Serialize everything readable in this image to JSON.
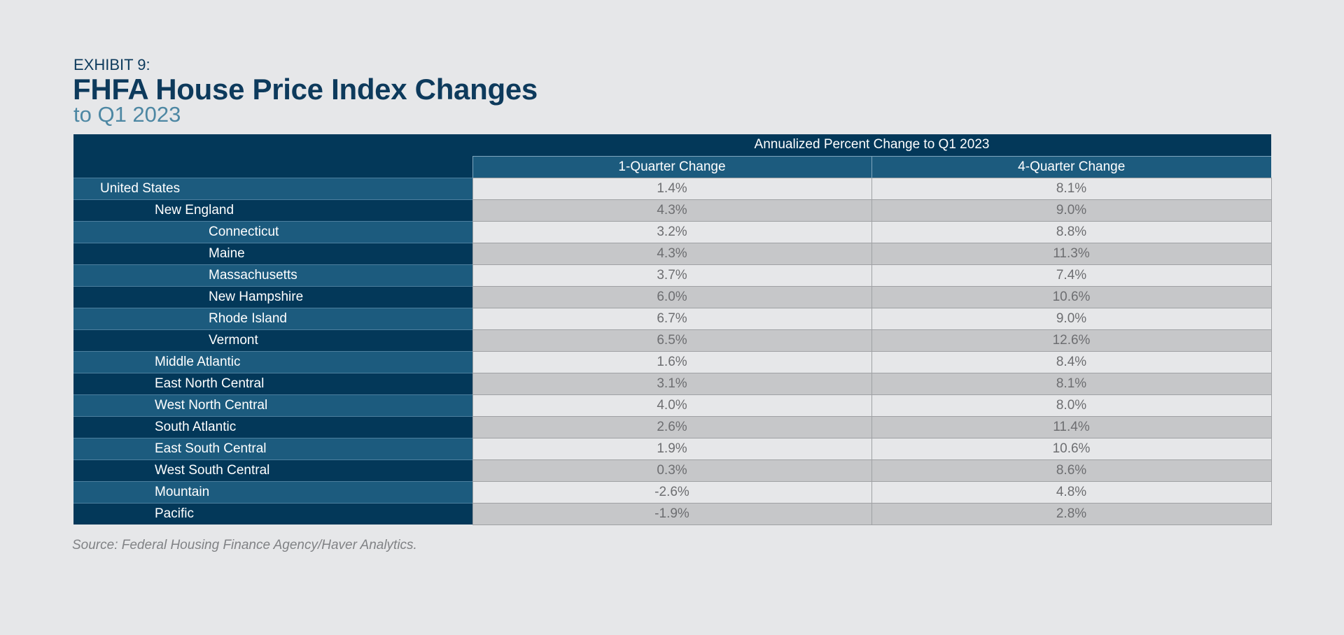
{
  "exhibit_label": "EXHIBIT 9:",
  "title": "FHFA House Price Index Changes",
  "subtitle": "to Q1 2023",
  "header": {
    "group_label": "Annualized Percent Change to Q1 2023",
    "col1": "1-Quarter Change",
    "col2": "4-Quarter Change"
  },
  "chart_data": {
    "type": "table",
    "title": "FHFA House Price Index Changes",
    "subtitle": "to Q1 2023",
    "column_group": "Annualized Percent Change to Q1 2023",
    "columns": [
      "1-Quarter Change",
      "4-Quarter Change"
    ],
    "rows": [
      {
        "region": "United States",
        "level": 0,
        "q1": "1.4%",
        "q4": "8.1%"
      },
      {
        "region": "New England",
        "level": 1,
        "q1": "4.3%",
        "q4": "9.0%"
      },
      {
        "region": "Connecticut",
        "level": 2,
        "q1": "3.2%",
        "q4": "8.8%"
      },
      {
        "region": "Maine",
        "level": 2,
        "q1": "4.3%",
        "q4": "11.3%"
      },
      {
        "region": "Massachusetts",
        "level": 2,
        "q1": "3.7%",
        "q4": "7.4%"
      },
      {
        "region": "New Hampshire",
        "level": 2,
        "q1": "6.0%",
        "q4": "10.6%"
      },
      {
        "region": "Rhode Island",
        "level": 2,
        "q1": "6.7%",
        "q4": "9.0%"
      },
      {
        "region": "Vermont",
        "level": 2,
        "q1": "6.5%",
        "q4": "12.6%"
      },
      {
        "region": "Middle Atlantic",
        "level": 1,
        "q1": "1.6%",
        "q4": "8.4%"
      },
      {
        "region": "East North Central",
        "level": 1,
        "q1": "3.1%",
        "q4": "8.1%"
      },
      {
        "region": "West North Central",
        "level": 1,
        "q1": "4.0%",
        "q4": "8.0%"
      },
      {
        "region": "South Atlantic",
        "level": 1,
        "q1": "2.6%",
        "q4": "11.4%"
      },
      {
        "region": "East South Central",
        "level": 1,
        "q1": "1.9%",
        "q4": "10.6%"
      },
      {
        "region": "West South Central",
        "level": 1,
        "q1": "0.3%",
        "q4": "8.6%"
      },
      {
        "region": "Mountain",
        "level": 1,
        "q1": "-2.6%",
        "q4": "4.8%"
      },
      {
        "region": "Pacific",
        "level": 1,
        "q1": "-1.9%",
        "q4": "2.8%"
      }
    ]
  },
  "source": "Source: Federal Housing Finance Agency/Haver Analytics.",
  "colors": {
    "navy": "#033859",
    "blue": "#1c5b7e",
    "subtitle_blue": "#4d87a3",
    "cell_light": "#e6e7e9",
    "cell_dark": "#c6c7c9",
    "value_text": "#6d6e71"
  }
}
